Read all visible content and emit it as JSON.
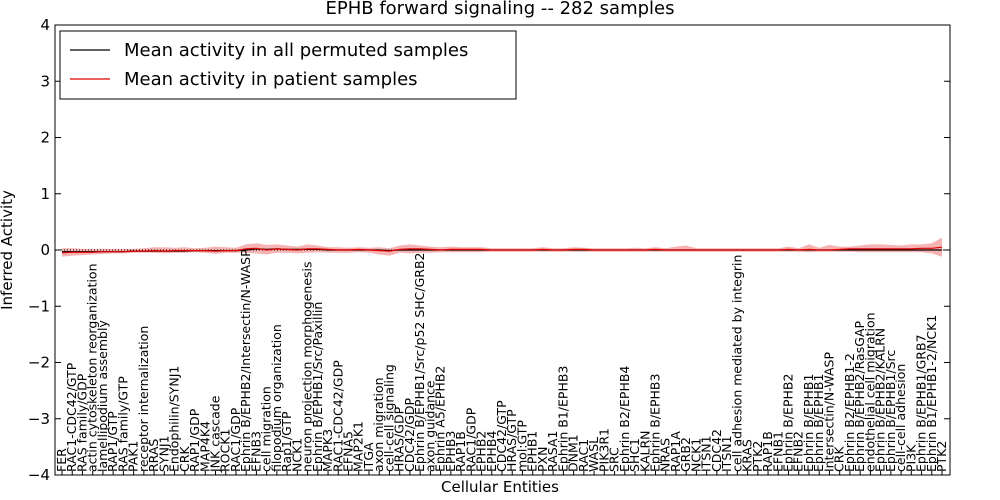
{
  "chart_data": {
    "type": "line",
    "title": "EPHB forward signaling -- 282 samples",
    "xlabel": "Cellular Entities",
    "ylabel": "Inferred Activity",
    "ylim": [
      -4,
      4
    ],
    "yticks": [
      -4,
      -3,
      -2,
      -1,
      0,
      1,
      2,
      3,
      4
    ],
    "grid": false,
    "legend_position": "top-left",
    "colors": {
      "permuted": "#000000",
      "patient": "#e00000",
      "band": "#f08080"
    },
    "categories": [
      "FER",
      "RAC1-CDC42/GTP",
      "RAS family/GDP",
      "actin cytoskeleton reorganization",
      "lamellipodium assembly",
      "RAP1/GTP",
      "RAS family/GTP",
      "PAK1",
      "receptor internalization",
      "RRAS",
      "SYNJ1",
      "Endophilin/SYNJ1",
      "CRK",
      "RAP1/GDP",
      "MAP4K4",
      "JNK cascade",
      "ROCK1",
      "RAC1/GDP",
      "Ephrin B/EPHB2/Intersectin/N-WASP",
      "EFNB3",
      "cell migration",
      "filopodium organization",
      "Rap1/GTP",
      "NCK1",
      "neuron projection morphogenesis",
      "Ephrin B/EPHB1/Src/Paxillin",
      "MAPK3",
      "RAC1-CDC42/GDP",
      "EFNA5",
      "MAP2K1",
      "ITGA",
      "axon migration",
      "cell-cell signaling",
      "HRAS/GDP",
      "CDC42/GDP",
      "Ephrin B/EPHB1/Src/p52 SHC/GRB2",
      "axon guidance",
      "Ephrin A5/EPHB2",
      "EPHB3",
      "RAP1B",
      "RAC1/GDP",
      "EPHB2",
      "EPHB4",
      "CDC42/GTP",
      "HRAS/GTP",
      "mol:GTP",
      "EPHB1",
      "PXN",
      "RASA1",
      "Ephrin B1/EPHB3",
      "DNM1",
      "RAC1",
      "WASL",
      "PIK3R1",
      "SRC",
      "Ephrin B2/EPHB4",
      "SHC1",
      "KALRN",
      "Ephrin B/EPHB3",
      "NRAS",
      "RAP1A",
      "GRB2",
      "NCK1",
      "ITSN1",
      "CDC42",
      "ITSN1",
      "cell adhesion mediated by integrin",
      "KRAS",
      "PTK2",
      "RAP1B",
      "EFNB1",
      "Ephrin B/EPHB2",
      "EFNB2",
      "Ephrin B/EPHB1",
      "Ephrin B/EPHB1",
      "Intersectin/N-WASP",
      "CRK",
      "Ephrin B2/EPHB1-2",
      "Ephrin B/EPHB2/RasGAP",
      "endothelial cell migration",
      "Ephrin B/EPHB2/KALRN",
      "Ephrin B/EPHB1/Src",
      "cell-cell adhesion",
      "PI3K",
      "Ephrin B/EPHB1/GRB7",
      "Ephrin B1/EPHB1-2/NCK1",
      "PTK2"
    ],
    "series": [
      {
        "name": "Mean activity in all permuted samples",
        "values": [
          -0.03,
          -0.03,
          -0.03,
          -0.03,
          -0.03,
          -0.03,
          -0.03,
          -0.02,
          -0.02,
          -0.02,
          -0.02,
          -0.02,
          -0.02,
          -0.01,
          -0.01,
          -0.01,
          -0.01,
          -0.01,
          0.0,
          0.02,
          0.01,
          0.02,
          0.01,
          0.01,
          0.01,
          0.01,
          0.0,
          0.0,
          0.0,
          0.0,
          0.0,
          0.0,
          -0.01,
          0.0,
          0.0,
          0.0,
          0.0,
          0.0,
          0.0,
          0.0,
          0.0,
          0.0,
          0.0,
          0.0,
          0.0,
          0.0,
          0.0,
          0.0,
          0.0,
          0.0,
          0.0,
          0.0,
          0.0,
          0.0,
          0.0,
          0.0,
          0.0,
          0.0,
          0.0,
          0.0,
          0.0,
          0.0,
          0.0,
          0.0,
          0.0,
          0.0,
          0.0,
          0.0,
          0.0,
          0.0,
          0.0,
          0.0,
          0.0,
          0.0,
          0.0,
          0.0,
          0.0,
          0.0,
          0.0,
          0.0,
          0.0,
          0.0,
          0.0,
          0.0,
          0.0,
          0.0,
          0.0
        ]
      },
      {
        "name": "Mean activity in patient samples",
        "values": [
          -0.05,
          -0.04,
          -0.04,
          -0.04,
          -0.03,
          -0.03,
          -0.03,
          -0.02,
          -0.02,
          -0.01,
          -0.02,
          -0.01,
          -0.01,
          -0.01,
          -0.01,
          -0.02,
          -0.01,
          -0.01,
          0.02,
          0.03,
          0.0,
          0.02,
          0.01,
          0.0,
          0.02,
          0.02,
          0.01,
          0.0,
          0.0,
          0.01,
          0.0,
          -0.01,
          -0.02,
          0.01,
          0.02,
          0.02,
          0.01,
          0.0,
          0.01,
          0.01,
          0.01,
          0.01,
          0.0,
          0.0,
          0.0,
          0.0,
          0.0,
          0.01,
          0.0,
          0.0,
          0.01,
          0.01,
          0.0,
          0.0,
          0.0,
          0.0,
          0.0,
          0.0,
          0.01,
          0.0,
          0.0,
          0.0,
          0.0,
          0.0,
          0.0,
          0.0,
          0.0,
          0.0,
          0.0,
          0.0,
          0.0,
          0.01,
          0.0,
          0.01,
          0.0,
          0.0,
          0.01,
          0.02,
          0.02,
          0.02,
          0.02,
          0.02,
          0.02,
          0.02,
          0.03,
          0.03,
          0.05
        ]
      }
    ],
    "band": {
      "upper": [
        0.03,
        0.03,
        0.02,
        0.02,
        0.02,
        0.02,
        0.02,
        0.02,
        0.03,
        0.05,
        0.05,
        0.04,
        0.05,
        0.03,
        0.04,
        0.06,
        0.05,
        0.04,
        0.1,
        0.12,
        0.09,
        0.1,
        0.08,
        0.06,
        0.1,
        0.08,
        0.05,
        0.05,
        0.04,
        0.05,
        0.04,
        0.05,
        0.03,
        0.08,
        0.1,
        0.08,
        0.06,
        0.05,
        0.06,
        0.05,
        0.05,
        0.05,
        0.03,
        0.03,
        0.03,
        0.03,
        0.03,
        0.05,
        0.03,
        0.03,
        0.05,
        0.04,
        0.03,
        0.03,
        0.03,
        0.03,
        0.04,
        0.03,
        0.05,
        0.03,
        0.06,
        0.08,
        0.03,
        0.03,
        0.03,
        0.03,
        0.03,
        0.03,
        0.03,
        0.03,
        0.03,
        0.06,
        0.03,
        0.1,
        0.04,
        0.09,
        0.06,
        0.06,
        0.08,
        0.1,
        0.1,
        0.09,
        0.08,
        0.1,
        0.1,
        0.12,
        0.22
      ],
      "lower": [
        -0.12,
        -0.1,
        -0.09,
        -0.08,
        -0.07,
        -0.06,
        -0.06,
        -0.05,
        -0.05,
        -0.05,
        -0.06,
        -0.05,
        -0.05,
        -0.04,
        -0.05,
        -0.07,
        -0.05,
        -0.05,
        -0.05,
        -0.06,
        -0.08,
        -0.05,
        -0.05,
        -0.06,
        -0.05,
        -0.04,
        -0.05,
        -0.05,
        -0.05,
        -0.04,
        -0.05,
        -0.08,
        -0.1,
        -0.05,
        -0.06,
        -0.05,
        -0.05,
        -0.04,
        -0.04,
        -0.04,
        -0.04,
        -0.04,
        -0.03,
        -0.03,
        -0.03,
        -0.03,
        -0.03,
        -0.03,
        -0.03,
        -0.03,
        -0.03,
        -0.03,
        -0.03,
        -0.03,
        -0.03,
        -0.03,
        -0.03,
        -0.03,
        -0.03,
        -0.03,
        -0.03,
        -0.03,
        -0.03,
        -0.03,
        -0.03,
        -0.03,
        -0.03,
        -0.03,
        -0.03,
        -0.03,
        -0.03,
        -0.03,
        -0.03,
        -0.04,
        -0.03,
        -0.03,
        -0.03,
        -0.03,
        -0.04,
        -0.04,
        -0.04,
        -0.04,
        -0.04,
        -0.04,
        -0.04,
        -0.06,
        -0.12
      ]
    }
  }
}
